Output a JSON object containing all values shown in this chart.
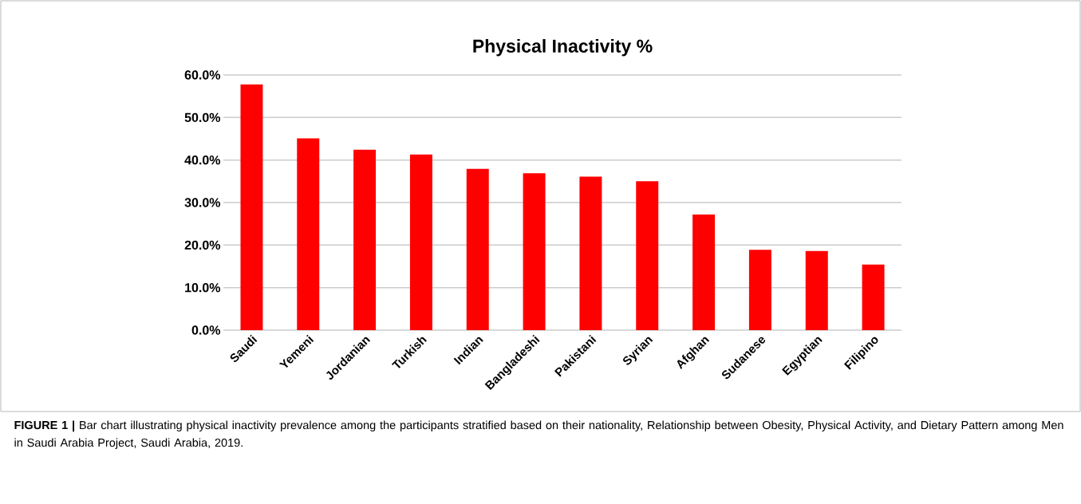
{
  "chart_data": {
    "type": "bar",
    "title": "Physical Inactivity %",
    "categories": [
      "Saudi",
      "Yemeni",
      "Jordanian",
      "Turkish",
      "Indian",
      "Bangladeshi",
      "Pakistani",
      "Syrian",
      "Afghan",
      "Sudanese",
      "Egyptian",
      "Filipino"
    ],
    "values": [
      57.8,
      45.1,
      42.4,
      41.3,
      37.9,
      36.9,
      36.1,
      35.0,
      27.2,
      18.9,
      18.6,
      15.4
    ],
    "color": "#ff0000",
    "ylim": [
      0,
      60
    ],
    "yticks": [
      {
        "value": 0,
        "label": "0.0%"
      },
      {
        "value": 10,
        "label": "10.0%"
      },
      {
        "value": 20,
        "label": "20.0%"
      },
      {
        "value": 30,
        "label": "30.0%"
      },
      {
        "value": 40,
        "label": "40.0%"
      },
      {
        "value": 50,
        "label": "50.0%"
      },
      {
        "value": 60,
        "label": "60.0%"
      }
    ],
    "grid": "y",
    "annotations": [
      "**FIGURE 1 |** Bar chart illustrating physical inactivity prevalence among the participants stratified based on their nationality, Relationship between Obesity, Physical Activity, and Dietary Pattern among Men in Saudi Arabia Project, Saudi Arabia, 2019."
    ]
  }
}
